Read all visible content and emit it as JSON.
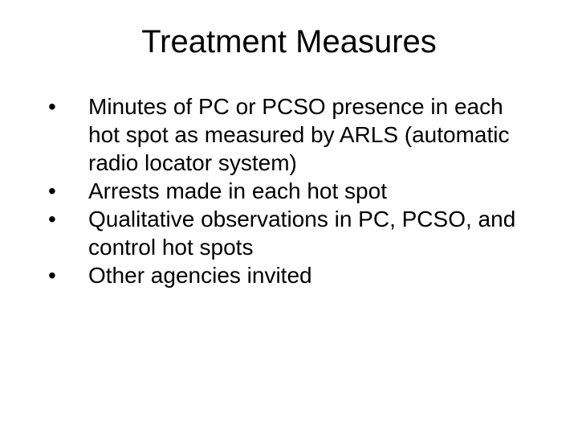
{
  "slide": {
    "title": "Treatment Measures",
    "bullets": [
      {
        "marker": "•",
        "text": "Minutes of PC or PCSO presence in each hot spot as measured by ARLS (automatic radio locator system)"
      },
      {
        "marker": "•",
        "text": "Arrests made in each hot spot"
      },
      {
        "marker": "•",
        "text": "Qualitative observations in PC, PCSO, and control hot spots"
      },
      {
        "marker": "•",
        "text": "Other agencies invited"
      }
    ],
    "background_color": "#ffffff",
    "text_color": "#000000",
    "title_fontsize": 40,
    "body_fontsize": 28,
    "font_family": "Arial"
  }
}
